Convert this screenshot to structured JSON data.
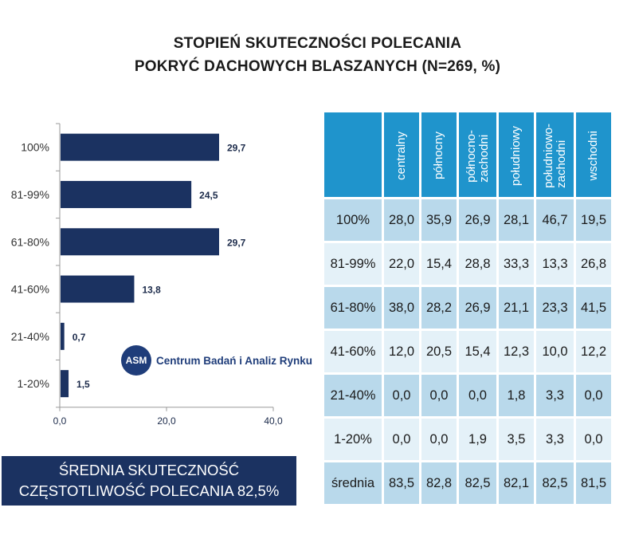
{
  "title": {
    "line1": "STOPIEŃ SKUTECZNOŚCI POLECANIA",
    "line2": "POKRYĆ DACHOWYCH BLASZANYCH (N=269, %)"
  },
  "chart_data": {
    "type": "bar",
    "orientation": "horizontal",
    "categories": [
      "100%",
      "81-99%",
      "61-80%",
      "41-60%",
      "21-40%",
      "1-20%"
    ],
    "values": [
      29.7,
      24.5,
      29.7,
      13.8,
      0.7,
      1.5
    ],
    "value_labels": [
      "29,7",
      "24,5",
      "29,7",
      "13,8",
      "0,7",
      "1,5"
    ],
    "xlim": [
      0,
      40
    ],
    "xticks": [
      "0,0",
      "20,0",
      "40,0"
    ],
    "grid": false,
    "bar_color": "#1b3261"
  },
  "logo": {
    "mark": "ASM",
    "text": "Centrum Badań i Analiz Rynku"
  },
  "average": {
    "line1": "ŚREDNIA SKUTECZNOŚĆ",
    "line2": "CZĘSTOTLIWOŚĆ POLECANIA 82,5%"
  },
  "table": {
    "columns": [
      "centralny",
      "północny",
      "północno-\nzachodni",
      "południowy",
      "południowo-\nzachodni",
      "wschodni"
    ],
    "rows": [
      {
        "label": "100%",
        "values": [
          "28,0",
          "35,9",
          "26,9",
          "28,1",
          "46,7",
          "19,5"
        ]
      },
      {
        "label": "81-99%",
        "values": [
          "22,0",
          "15,4",
          "28,8",
          "33,3",
          "13,3",
          "26,8"
        ]
      },
      {
        "label": "61-80%",
        "values": [
          "38,0",
          "28,2",
          "26,9",
          "21,1",
          "23,3",
          "41,5"
        ]
      },
      {
        "label": "41-60%",
        "values": [
          "12,0",
          "20,5",
          "15,4",
          "12,3",
          "10,0",
          "12,2"
        ]
      },
      {
        "label": "21-40%",
        "values": [
          "0,0",
          "0,0",
          "0,0",
          "1,8",
          "3,3",
          "0,0"
        ]
      },
      {
        "label": "1-20%",
        "values": [
          "0,0",
          "0,0",
          "1,9",
          "3,5",
          "3,3",
          "0,0"
        ]
      },
      {
        "label": "średnia",
        "values": [
          "83,5",
          "82,8",
          "82,5",
          "82,1",
          "82,5",
          "81,5"
        ]
      }
    ]
  },
  "colors": {
    "header": "#1f94cc",
    "row_dark": "#b9d9eb",
    "row_light": "#e4f1f8",
    "navy": "#1b3261"
  }
}
